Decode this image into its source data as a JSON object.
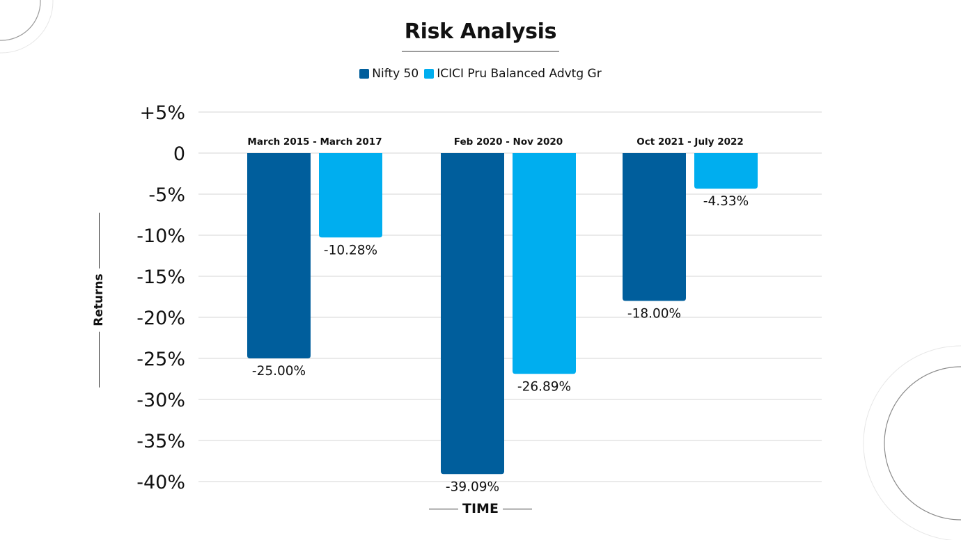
{
  "chart_data": {
    "type": "bar",
    "title": "Risk Analysis",
    "xlabel": "TIME",
    "ylabel": "Returns",
    "categories": [
      "March 2015 - March 2017",
      "Feb 2020 - Nov 2020",
      "Oct 2021 - July 2022"
    ],
    "series": [
      {
        "name": "Nifty 50",
        "color": "#005e9c",
        "values": [
          -25.0,
          -39.09,
          -18.0
        ],
        "labels": [
          "-25.00%",
          "-39.09%",
          "-18.00%"
        ]
      },
      {
        "name": "ICICI Pru Balanced Advtg Gr",
        "color": "#00aeef",
        "values": [
          -10.28,
          -26.89,
          -4.33
        ],
        "labels": [
          "-10.28%",
          "-26.89%",
          "-4.33%"
        ]
      }
    ],
    "ylim": [
      -40,
      5
    ],
    "yticks": [
      5,
      0,
      -5,
      -10,
      -15,
      -20,
      -25,
      -30,
      -35,
      -40
    ],
    "ytick_labels": [
      "+5%",
      "0",
      "-5%",
      "-10%",
      "-15%",
      "-20%",
      "-25%",
      "-30%",
      "-35%",
      "-40%"
    ],
    "grid": true,
    "legend_position": "top-center"
  }
}
